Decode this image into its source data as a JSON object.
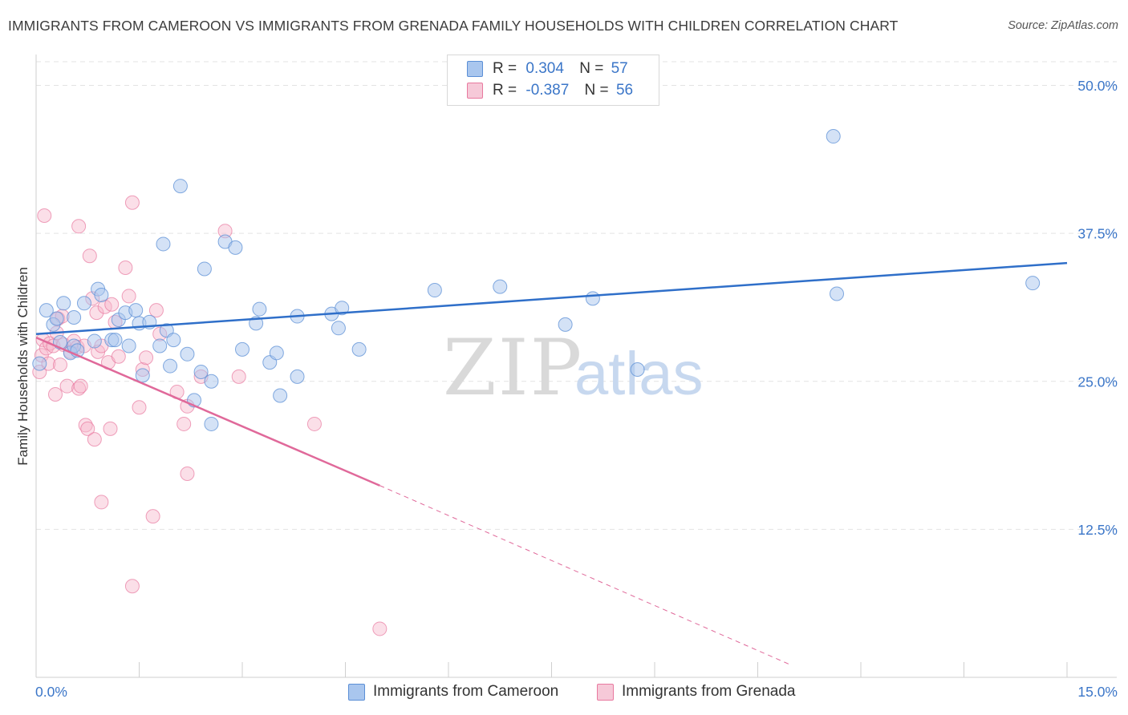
{
  "header": {
    "title": "IMMIGRANTS FROM CAMEROON VS IMMIGRANTS FROM GRENADA FAMILY HOUSEHOLDS WITH CHILDREN CORRELATION CHART",
    "source": "Source: ZipAtlas.com"
  },
  "watermark": {
    "zip": "ZIP",
    "atlas": "atlas"
  },
  "legend": {
    "r_label": "R =",
    "n_label": "N =",
    "cameroon": {
      "r": "0.304",
      "n": "57"
    },
    "grenada": {
      "r": "-0.387",
      "n": "56"
    }
  },
  "colors": {
    "cameroon_fill": "#a9c6ee",
    "cameroon_stroke": "#5b8fd6",
    "cameroon_line": "#2f6fc9",
    "grenada_fill": "#f6b7cb",
    "grenada_stroke": "#e8799f",
    "grenada_line": "#e0699a",
    "tick_label": "#3b76c8",
    "grid": "#e3e3e3"
  },
  "chart_data": {
    "type": "scatter",
    "title": "IMMIGRANTS FROM CAMEROON VS IMMIGRANTS FROM GRENADA FAMILY HOUSEHOLDS WITH CHILDREN CORRELATION CHART",
    "xlabel": "",
    "ylabel": "Family Households with Children",
    "xlim": [
      0,
      15
    ],
    "ylim": [
      0,
      52
    ],
    "x_tick_labels": [
      "0.0%",
      "15.0%"
    ],
    "y_ticks": [
      12.5,
      25.0,
      37.5,
      50.0
    ],
    "y_tick_labels": [
      "12.5%",
      "25.0%",
      "37.5%",
      "50.0%"
    ],
    "grid": true,
    "legend_position": "top-center",
    "series": [
      {
        "name": "Immigrants from Cameroon",
        "r": 0.304,
        "n": 57,
        "trend": {
          "x0": 0.0,
          "y0": 29.0,
          "x1": 15.0,
          "y1": 35.0,
          "dashed_to": null
        },
        "points": [
          [
            0.05,
            26.5
          ],
          [
            0.15,
            31.0
          ],
          [
            0.25,
            29.8
          ],
          [
            0.3,
            30.3
          ],
          [
            0.35,
            28.3
          ],
          [
            0.4,
            31.6
          ],
          [
            0.5,
            27.4
          ],
          [
            0.55,
            28.0
          ],
          [
            0.6,
            27.6
          ],
          [
            0.55,
            30.4
          ],
          [
            0.7,
            31.6
          ],
          [
            0.85,
            28.4
          ],
          [
            0.9,
            32.8
          ],
          [
            0.95,
            32.3
          ],
          [
            1.1,
            28.5
          ],
          [
            1.15,
            28.5
          ],
          [
            1.2,
            30.2
          ],
          [
            1.3,
            30.8
          ],
          [
            1.35,
            28.0
          ],
          [
            1.45,
            31.0
          ],
          [
            1.5,
            29.9
          ],
          [
            1.55,
            25.5
          ],
          [
            1.65,
            30.0
          ],
          [
            1.8,
            28.0
          ],
          [
            1.85,
            36.6
          ],
          [
            1.9,
            29.3
          ],
          [
            1.95,
            26.3
          ],
          [
            2.0,
            28.5
          ],
          [
            2.1,
            41.5
          ],
          [
            2.2,
            27.3
          ],
          [
            2.3,
            23.4
          ],
          [
            2.4,
            25.8
          ],
          [
            2.45,
            34.5
          ],
          [
            2.55,
            25.0
          ],
          [
            2.55,
            21.4
          ],
          [
            2.75,
            36.8
          ],
          [
            2.9,
            36.3
          ],
          [
            3.0,
            27.7
          ],
          [
            3.2,
            29.9
          ],
          [
            3.25,
            31.1
          ],
          [
            3.4,
            26.6
          ],
          [
            3.5,
            27.4
          ],
          [
            3.55,
            23.8
          ],
          [
            3.8,
            25.4
          ],
          [
            3.8,
            30.5
          ],
          [
            4.3,
            30.7
          ],
          [
            4.4,
            29.5
          ],
          [
            4.45,
            31.2
          ],
          [
            4.7,
            27.7
          ],
          [
            5.8,
            32.7
          ],
          [
            6.75,
            33.0
          ],
          [
            7.7,
            29.8
          ],
          [
            8.1,
            32.0
          ],
          [
            8.75,
            26.0
          ],
          [
            11.6,
            45.7
          ],
          [
            11.65,
            32.4
          ],
          [
            14.5,
            33.3
          ]
        ]
      },
      {
        "name": "Immigrants from Grenada",
        "r": -0.387,
        "n": 56,
        "trend": {
          "x0": 0.0,
          "y0": 28.7,
          "x1": 5.0,
          "y1": 16.2,
          "dashed_to": [
            11.0,
            1.0
          ]
        },
        "points": [
          [
            0.05,
            25.8
          ],
          [
            0.08,
            27.2
          ],
          [
            0.1,
            28.5
          ],
          [
            0.15,
            27.8
          ],
          [
            0.18,
            26.5
          ],
          [
            0.2,
            28.2
          ],
          [
            0.25,
            28.0
          ],
          [
            0.28,
            23.9
          ],
          [
            0.3,
            29.1
          ],
          [
            0.32,
            30.3
          ],
          [
            0.35,
            26.4
          ],
          [
            0.38,
            30.5
          ],
          [
            0.4,
            28.1
          ],
          [
            0.45,
            24.6
          ],
          [
            0.5,
            27.5
          ],
          [
            0.55,
            28.4
          ],
          [
            0.6,
            27.9
          ],
          [
            0.62,
            24.4
          ],
          [
            0.65,
            24.6
          ],
          [
            0.7,
            28.0
          ],
          [
            0.72,
            21.3
          ],
          [
            0.75,
            21.0
          ],
          [
            0.78,
            35.6
          ],
          [
            0.82,
            32.0
          ],
          [
            0.85,
            20.1
          ],
          [
            0.88,
            30.8
          ],
          [
            0.9,
            27.5
          ],
          [
            0.95,
            28.0
          ],
          [
            1.0,
            31.3
          ],
          [
            1.05,
            26.6
          ],
          [
            1.08,
            21.0
          ],
          [
            1.1,
            31.5
          ],
          [
            1.15,
            30.0
          ],
          [
            1.2,
            27.1
          ],
          [
            1.3,
            34.6
          ],
          [
            1.35,
            32.2
          ],
          [
            1.4,
            40.1
          ],
          [
            1.5,
            22.8
          ],
          [
            1.55,
            26.0
          ],
          [
            1.6,
            27.0
          ],
          [
            1.7,
            13.6
          ],
          [
            1.75,
            31.0
          ],
          [
            1.8,
            29.0
          ],
          [
            2.05,
            24.1
          ],
          [
            2.15,
            21.4
          ],
          [
            2.2,
            22.9
          ],
          [
            2.2,
            17.2
          ],
          [
            2.4,
            25.4
          ],
          [
            2.75,
            37.7
          ],
          [
            2.95,
            25.4
          ],
          [
            4.05,
            21.4
          ],
          [
            0.12,
            39.0
          ],
          [
            1.4,
            7.7
          ],
          [
            5.0,
            4.1
          ],
          [
            0.95,
            14.8
          ],
          [
            0.62,
            38.1
          ]
        ]
      }
    ]
  }
}
